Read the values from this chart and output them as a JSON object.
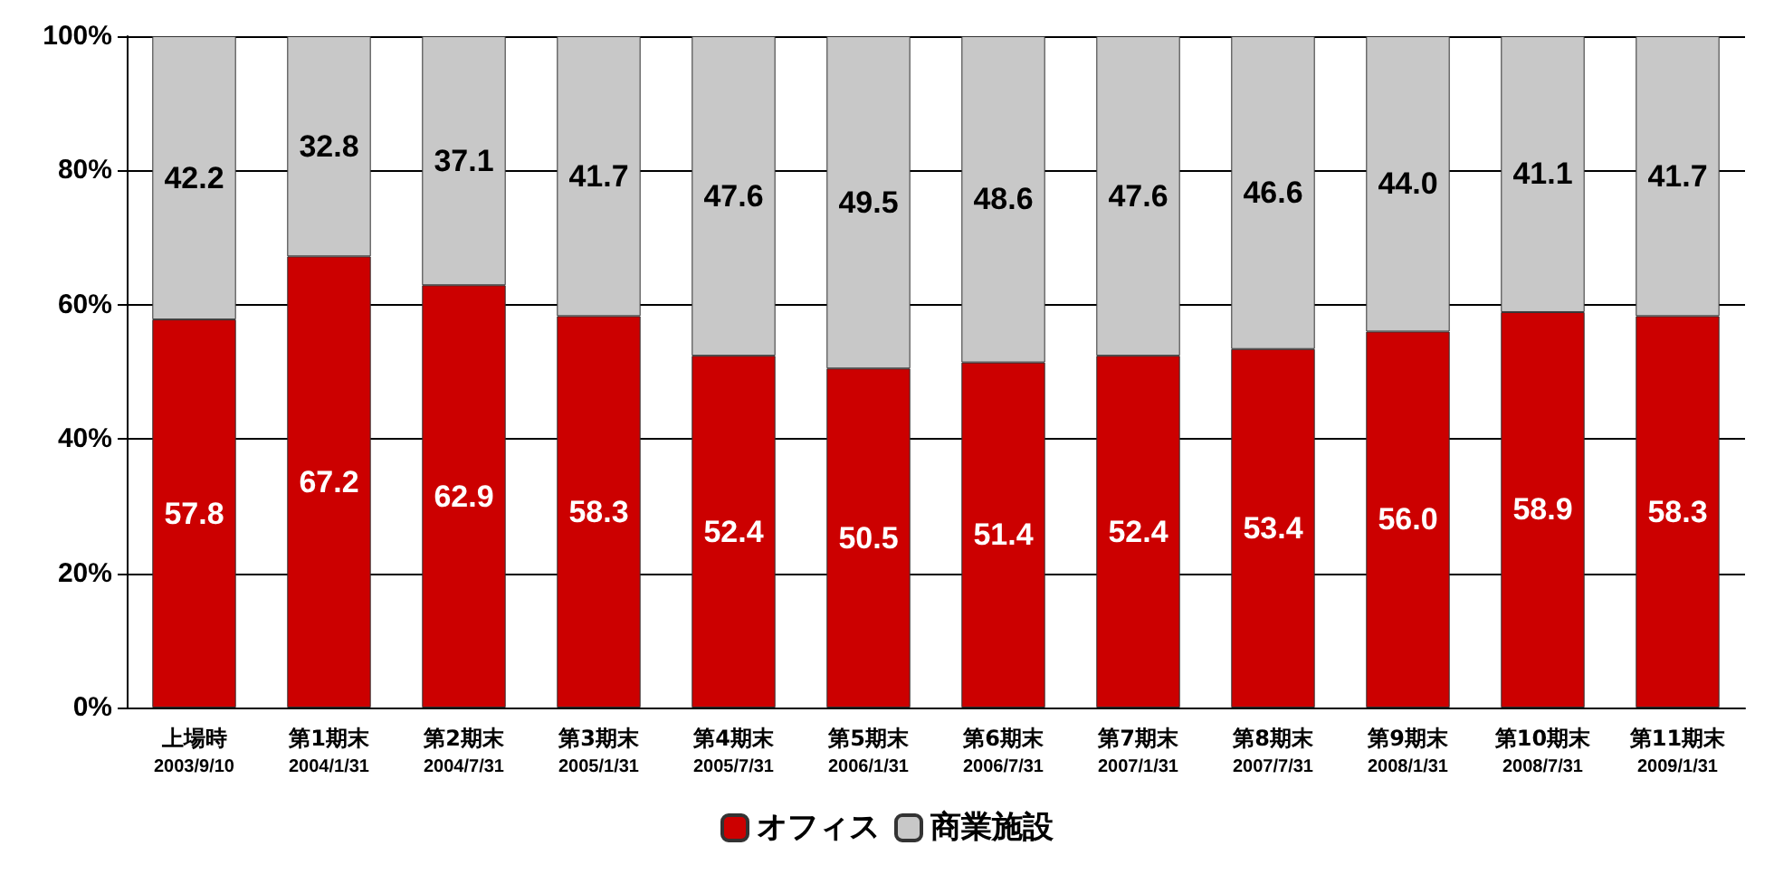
{
  "chart_data": {
    "type": "bar",
    "stacked": true,
    "categories": [
      "上場時\n2003/9/10",
      "第1期末\n2004/1/31",
      "第2期末\n2004/7/31",
      "第3期末\n2005/1/31",
      "第4期末\n2005/7/31",
      "第5期末\n2006/1/31",
      "第6期末\n2006/7/31",
      "第7期末\n2007/1/31",
      "第8期末\n2007/7/31",
      "第9期末\n2008/1/31",
      "第10期末\n2008/7/31",
      "第11期末\n2009/1/31"
    ],
    "series": [
      {
        "name": "オフィス",
        "color": "#cc0000",
        "values": [
          57.8,
          67.2,
          62.9,
          58.3,
          52.4,
          50.5,
          51.4,
          52.4,
          53.4,
          56.0,
          58.9,
          58.3
        ],
        "value_labels": [
          "57.8",
          "67.2",
          "62.9",
          "58.3",
          "52.4",
          "50.5",
          "51.4",
          "52.4",
          "53.4",
          "56.0",
          "58.9",
          "58.3"
        ]
      },
      {
        "name": "商業施設",
        "color": "#c8c8c8",
        "values": [
          42.2,
          32.8,
          37.1,
          41.7,
          47.6,
          49.5,
          48.6,
          47.6,
          46.6,
          44.0,
          41.1,
          41.7
        ],
        "value_labels": [
          "42.2",
          "32.8",
          "37.1",
          "41.7",
          "47.6",
          "49.5",
          "48.6",
          "47.6",
          "46.6",
          "44.0",
          "41.1",
          "41.7"
        ]
      }
    ],
    "ylim": [
      0,
      100
    ],
    "yticks": [
      {
        "value": 0,
        "label": "0%"
      },
      {
        "value": 20,
        "label": "20%"
      },
      {
        "value": 40,
        "label": "40%"
      },
      {
        "value": 60,
        "label": "60%"
      },
      {
        "value": 80,
        "label": "80%"
      },
      {
        "value": 100,
        "label": "100%"
      }
    ],
    "grid": "y",
    "legend": "bottom"
  }
}
